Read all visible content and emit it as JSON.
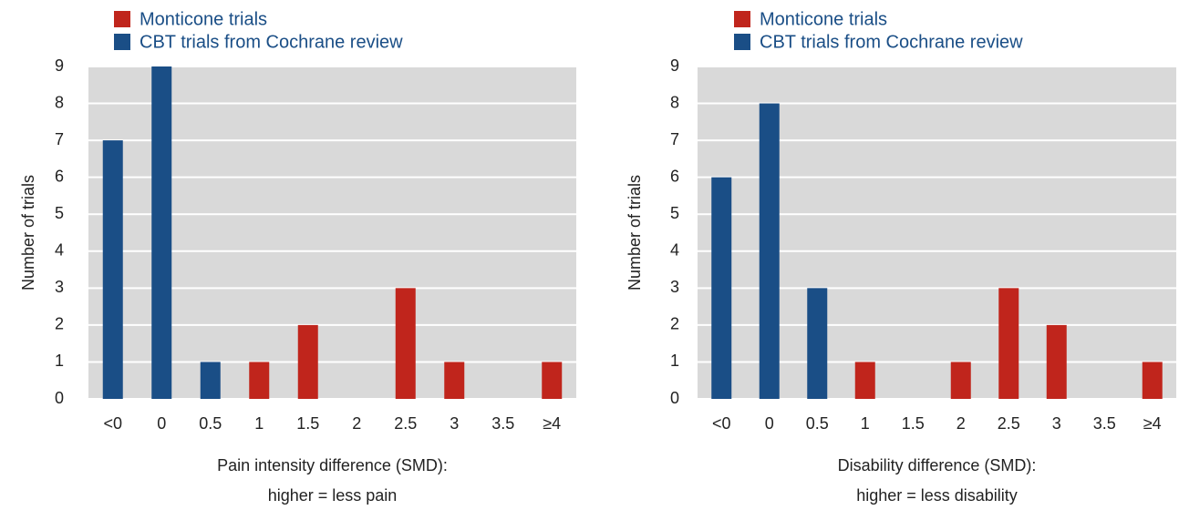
{
  "chart_data": [
    {
      "type": "bar",
      "ylabel": "Number of trials",
      "xlabel": [
        "Pain intensity difference (SMD):",
        "higher = less pain"
      ],
      "categories": [
        "<0",
        "0",
        "0.5",
        "1",
        "1.5",
        "2",
        "2.5",
        "3",
        "3.5",
        "≥4"
      ],
      "series": [
        {
          "name": "Monticone trials",
          "color": "#c0251c",
          "values": [
            0,
            0,
            0,
            1,
            2,
            0,
            3,
            1,
            0,
            1
          ]
        },
        {
          "name": "CBT trials from Cochrane review",
          "color": "#1a4e86",
          "values": [
            7,
            9,
            1,
            0,
            0,
            0,
            0,
            0,
            0,
            0
          ]
        }
      ],
      "ylim": [
        0,
        9
      ],
      "yticks": [
        0,
        1,
        2,
        3,
        4,
        5,
        6,
        7,
        8,
        9
      ],
      "grid": true
    },
    {
      "type": "bar",
      "ylabel": "Number of trials",
      "xlabel": [
        "Disability difference (SMD):",
        "higher = less disability"
      ],
      "categories": [
        "<0",
        "0",
        "0.5",
        "1",
        "1.5",
        "2",
        "2.5",
        "3",
        "3.5",
        "≥4"
      ],
      "series": [
        {
          "name": "Monticone trials",
          "color": "#c0251c",
          "values": [
            0,
            0,
            0,
            1,
            0,
            1,
            3,
            2,
            0,
            1
          ]
        },
        {
          "name": "CBT trials from Cochrane review",
          "color": "#1a4e86",
          "values": [
            6,
            8,
            3,
            0,
            0,
            0,
            0,
            0,
            0,
            0
          ]
        }
      ],
      "ylim": [
        0,
        9
      ],
      "yticks": [
        0,
        1,
        2,
        3,
        4,
        5,
        6,
        7,
        8,
        9
      ],
      "grid": true
    }
  ]
}
